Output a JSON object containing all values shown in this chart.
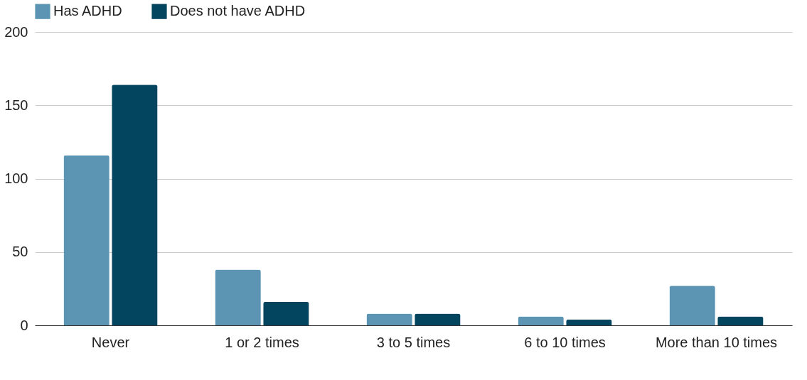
{
  "chart_data": {
    "type": "bar",
    "categories": [
      "Never",
      "1 or 2 times",
      "3 to 5 times",
      "6 to 10 times",
      "More than 10 times"
    ],
    "series": [
      {
        "name": "Has ADHD",
        "color": "#5b95b3",
        "values": [
          116,
          38,
          8,
          6,
          27
        ]
      },
      {
        "name": "Does not have ADHD",
        "color": "#03455f",
        "values": [
          164,
          16,
          8,
          4,
          6
        ]
      }
    ],
    "ylim": [
      0,
      200
    ],
    "yticks": [
      0,
      50,
      100,
      150,
      200
    ],
    "grid": "y",
    "legend": "top"
  }
}
